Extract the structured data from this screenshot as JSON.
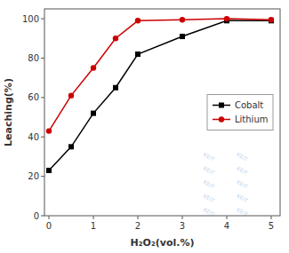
{
  "chart_data": {
    "type": "line",
    "xlabel": "H₂O₂(vol.%)",
    "ylabel": "Leaching(%)",
    "x": [
      0,
      0.5,
      1,
      1.5,
      2,
      3,
      4,
      5
    ],
    "series": [
      {
        "name": "Cobalt",
        "color": "#000000",
        "marker": "square",
        "values": [
          23,
          35,
          52,
          65,
          82,
          91,
          99,
          99
        ]
      },
      {
        "name": "Lithium",
        "color": "#cc0000",
        "marker": "circle",
        "values": [
          43,
          61,
          75,
          90,
          99,
          99.5,
          100,
          99.5
        ]
      }
    ],
    "xlim": [
      -0.1,
      5.2
    ],
    "ylim": [
      0,
      105
    ],
    "xticks": [
      0,
      1,
      2,
      3,
      4,
      5
    ],
    "yticks": [
      0,
      20,
      40,
      60,
      80,
      100
    ],
    "grid": false,
    "legend": "right",
    "annotations": [
      {
        "text": "KEIT",
        "x": 3.6,
        "y": 2
      },
      {
        "text": "KEIT",
        "x": 4.35,
        "y": 2
      },
      {
        "text": "KEIT",
        "x": 3.6,
        "y": 9
      },
      {
        "text": "KEIT",
        "x": 4.35,
        "y": 9
      },
      {
        "text": "KEIT",
        "x": 3.6,
        "y": 16
      },
      {
        "text": "KEIT",
        "x": 4.35,
        "y": 16
      },
      {
        "text": "KEIT",
        "x": 3.6,
        "y": 23
      },
      {
        "text": "KEIT",
        "x": 4.35,
        "y": 23
      },
      {
        "text": "KEIT",
        "x": 3.6,
        "y": 30
      },
      {
        "text": "KEIT",
        "x": 4.35,
        "y": 30
      }
    ]
  }
}
